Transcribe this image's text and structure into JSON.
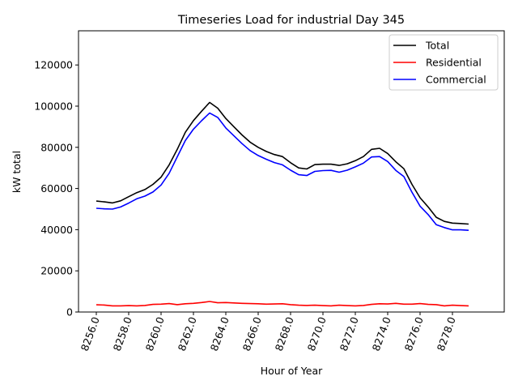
{
  "chart_data": {
    "type": "line",
    "title": "Timeseries Load for industrial   Day 345",
    "xlabel": "Hour of Year",
    "ylabel": "kW total",
    "xlim": [
      8254.9,
      8281.2
    ],
    "ylim": [
      0,
      136600
    ],
    "xticks": [
      8256,
      8258,
      8260,
      8262,
      8264,
      8266,
      8268,
      8270,
      8272,
      8274,
      8276,
      8278
    ],
    "xtick_labels": [
      "8256.0",
      "8258.0",
      "8260.0",
      "8262.0",
      "8264.0",
      "8266.0",
      "8268.0",
      "8270.0",
      "8272.0",
      "8274.0",
      "8276.0",
      "8278.0"
    ],
    "yticks": [
      0,
      20000,
      40000,
      60000,
      80000,
      100000,
      120000
    ],
    "ytick_labels": [
      "0",
      "20000",
      "40000",
      "60000",
      "80000",
      "100000",
      "120000"
    ],
    "legend_position": "top-right",
    "grid": false,
    "x": [
      8256,
      8256.5,
      8257,
      8257.5,
      8258,
      8258.5,
      8259,
      8259.5,
      8260,
      8260.5,
      8261,
      8261.5,
      8262,
      8262.5,
      8263,
      8263.5,
      8264,
      8264.5,
      8265,
      8265.5,
      8266,
      8266.5,
      8267,
      8267.5,
      8268,
      8268.5,
      8269,
      8269.5,
      8270,
      8270.5,
      8271,
      8271.5,
      8272,
      8272.5,
      8273,
      8273.5,
      8274,
      8274.5,
      8275,
      8275.5,
      8276,
      8276.5,
      8277,
      8277.5,
      8278,
      8278.5,
      8279
    ],
    "series": [
      {
        "name": "Total",
        "color": "#000000",
        "values": [
          53900,
          53500,
          53000,
          54000,
          56000,
          58000,
          59500,
          62000,
          65500,
          71500,
          79000,
          87300,
          93000,
          97500,
          101800,
          99000,
          94000,
          90000,
          86000,
          82500,
          80000,
          78000,
          76500,
          75500,
          72500,
          70000,
          69500,
          71600,
          71800,
          71800,
          71200,
          72000,
          73500,
          75500,
          79000,
          79500,
          77000,
          73000,
          69600,
          62000,
          55500,
          51000,
          46000,
          44000,
          43200,
          43000,
          42700
        ]
      },
      {
        "name": "Residential",
        "color": "#ff0000",
        "values": [
          3500,
          3400,
          3000,
          3000,
          3100,
          3000,
          3200,
          3700,
          3800,
          4100,
          3600,
          4000,
          4200,
          4600,
          5100,
          4500,
          4600,
          4400,
          4200,
          4100,
          4000,
          3800,
          3900,
          4000,
          3600,
          3300,
          3200,
          3300,
          3100,
          3000,
          3300,
          3100,
          3000,
          3200,
          3700,
          4000,
          3900,
          4200,
          3800,
          3800,
          4100,
          3700,
          3600,
          3000,
          3300,
          3100,
          3000
        ]
      },
      {
        "name": "Commercial",
        "color": "#0000ff",
        "values": [
          50400,
          50100,
          50000,
          51000,
          52900,
          55000,
          56300,
          58300,
          61700,
          67400,
          75400,
          83300,
          88800,
          92900,
          96700,
          94500,
          89400,
          85600,
          81800,
          78400,
          76000,
          74200,
          72600,
          71500,
          68900,
          66700,
          66300,
          68300,
          68700,
          68800,
          67900,
          68900,
          70500,
          72300,
          75300,
          75500,
          73100,
          68800,
          65800,
          58200,
          51400,
          47300,
          42400,
          41000,
          39900,
          39900,
          39700
        ]
      }
    ]
  }
}
